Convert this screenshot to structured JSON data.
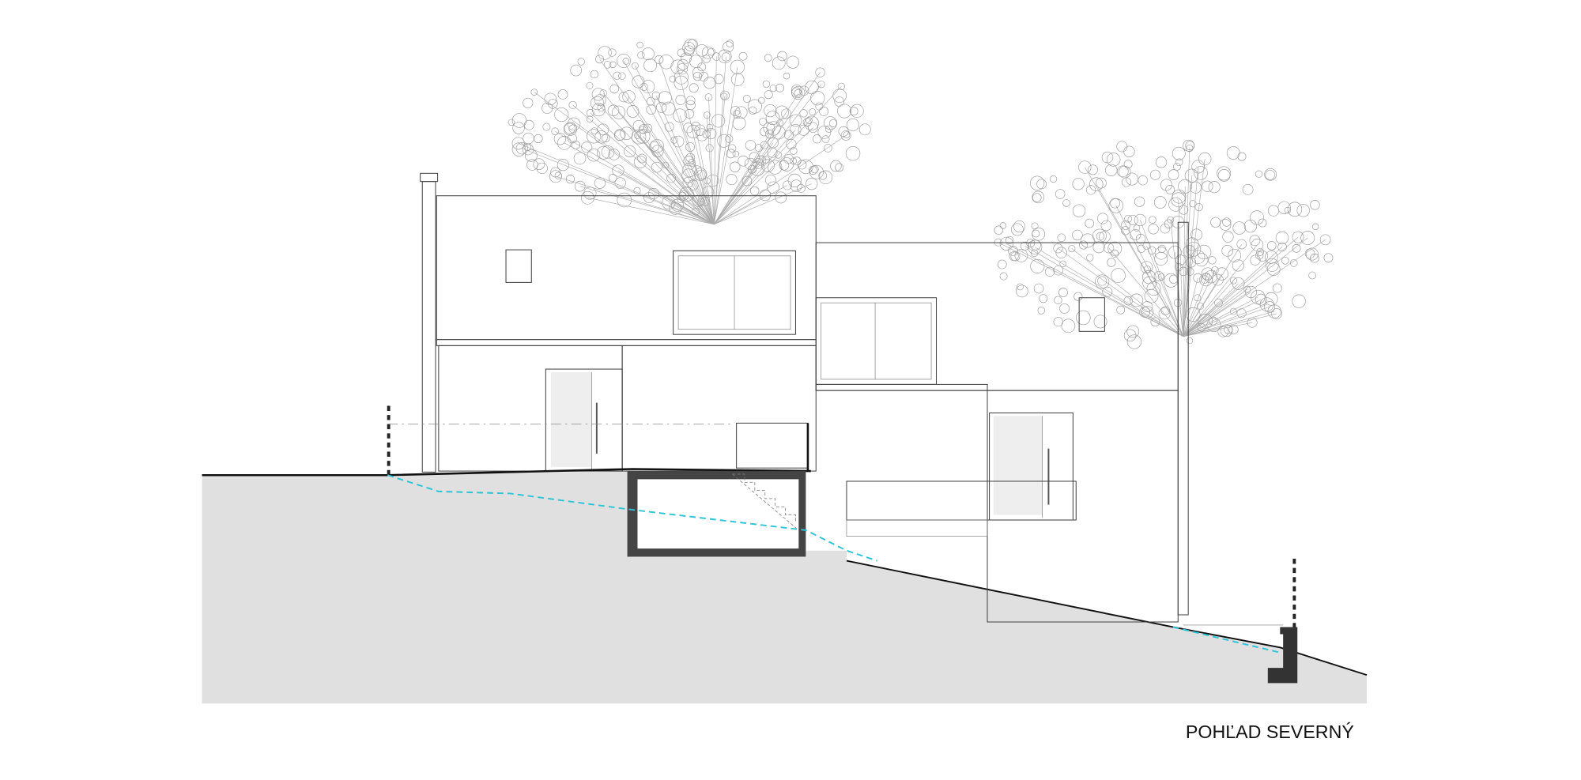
{
  "label": "POHĽAD SEVERNÝ"
}
